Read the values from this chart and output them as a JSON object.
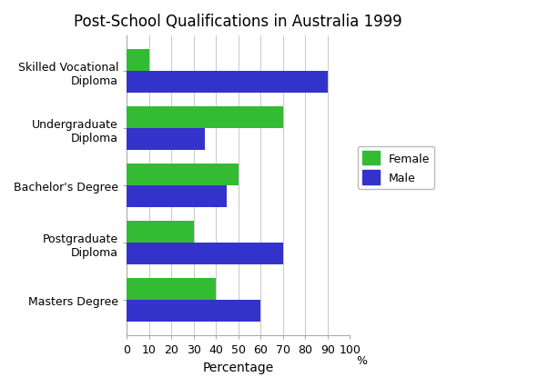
{
  "title": "Post-School Qualifications in Australia 1999",
  "categories": [
    "Skilled Vocational\nDiploma",
    "Undergraduate\nDiploma",
    "Bachelor's Degree",
    "Postgraduate\nDiploma",
    "Masters Degree"
  ],
  "female_values": [
    10,
    70,
    50,
    30,
    40
  ],
  "male_values": [
    90,
    35,
    45,
    70,
    60
  ],
  "female_color": "#33bb33",
  "male_color": "#3333cc",
  "xlabel": "Percentage",
  "xlim": [
    0,
    100
  ],
  "xticks": [
    0,
    10,
    20,
    30,
    40,
    50,
    60,
    70,
    80,
    90,
    100
  ],
  "xtick_labels": [
    "0",
    "10",
    "20",
    "30",
    "40",
    "50",
    "60",
    "70",
    "80",
    "90",
    "100"
  ],
  "title_fontsize": 12,
  "xlabel_fontsize": 10,
  "tick_fontsize": 9,
  "bar_height": 0.38,
  "legend_labels": [
    "Female",
    "Male"
  ],
  "background_color": "#ffffff",
  "grid_color": "#cccccc"
}
